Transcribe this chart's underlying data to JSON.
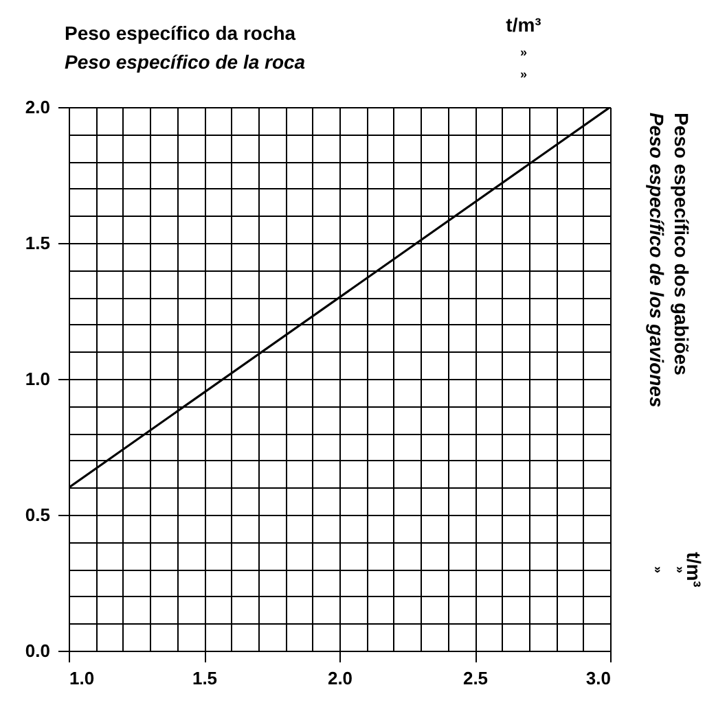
{
  "chart_data": {
    "type": "line",
    "xlabel": "Peso específico da rocha",
    "ylabel": "Peso específico dos gabiões",
    "annotations": [
      "Peso específico de la roca",
      "t/m³",
      "»",
      "»",
      "Peso específico de los gaviones",
      "t/m³",
      "»",
      "»"
    ],
    "x": [
      1.0,
      3.0
    ],
    "values": [
      0.6,
      2.0
    ],
    "color": "#000000",
    "xlim": [
      1.0,
      3.0
    ],
    "ylim": [
      0.0,
      2.0
    ],
    "xticks": [
      {
        "value": 1.0,
        "label": "1.0"
      },
      {
        "value": 1.1,
        "label": null
      },
      {
        "value": 1.2,
        "label": null
      },
      {
        "value": 1.3,
        "label": null
      },
      {
        "value": 1.4,
        "label": null
      },
      {
        "value": 1.5,
        "label": "1.5"
      },
      {
        "value": 1.6,
        "label": null
      },
      {
        "value": 1.7,
        "label": null
      },
      {
        "value": 1.8,
        "label": null
      },
      {
        "value": 1.9,
        "label": null
      },
      {
        "value": 2.0,
        "label": "2.0"
      },
      {
        "value": 2.1,
        "label": null
      },
      {
        "value": 2.2,
        "label": null
      },
      {
        "value": 2.3,
        "label": null
      },
      {
        "value": 2.4,
        "label": null
      },
      {
        "value": 2.5,
        "label": "2.5"
      },
      {
        "value": 2.6,
        "label": null
      },
      {
        "value": 2.7,
        "label": null
      },
      {
        "value": 2.8,
        "label": null
      },
      {
        "value": 2.9,
        "label": null
      },
      {
        "value": 3.0,
        "label": "3.0"
      }
    ],
    "yticks": [
      {
        "value": 0.0,
        "label": "0.0"
      },
      {
        "value": 0.1,
        "label": null
      },
      {
        "value": 0.2,
        "label": null
      },
      {
        "value": 0.3,
        "label": null
      },
      {
        "value": 0.4,
        "label": null
      },
      {
        "value": 0.5,
        "label": "0.5"
      },
      {
        "value": 0.6,
        "label": null
      },
      {
        "value": 0.7,
        "label": null
      },
      {
        "value": 0.8,
        "label": null
      },
      {
        "value": 0.9,
        "label": null
      },
      {
        "value": 1.0,
        "label": "1.0"
      },
      {
        "value": 1.1,
        "label": null
      },
      {
        "value": 1.2,
        "label": null
      },
      {
        "value": 1.3,
        "label": null
      },
      {
        "value": 1.4,
        "label": null
      },
      {
        "value": 1.5,
        "label": "1.5"
      },
      {
        "value": 1.6,
        "label": null
      },
      {
        "value": 1.7,
        "label": null
      },
      {
        "value": 1.8,
        "label": null
      },
      {
        "value": 1.9,
        "label": null
      },
      {
        "value": 2.0,
        "label": "2.0"
      }
    ],
    "grid": true
  }
}
